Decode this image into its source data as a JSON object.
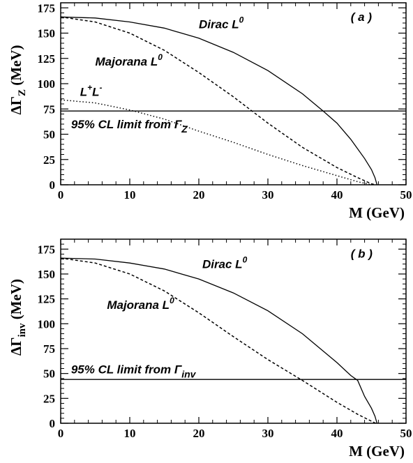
{
  "chart_data": [
    {
      "type": "line",
      "panel_label": "( a )",
      "ylabel": "ΔΓ",
      "ylabel_sub": "Z",
      "ylabel_unit": "(MeV)",
      "xlabel": "M (GeV)",
      "xlim": [
        0,
        50
      ],
      "ylim": [
        0,
        180
      ],
      "xticks": [
        0,
        10,
        20,
        30,
        40,
        50
      ],
      "yticks": [
        0,
        25,
        50,
        75,
        100,
        125,
        150,
        175
      ],
      "series": [
        {
          "name": "Dirac L0",
          "style": "solid",
          "points": [
            [
              0,
              166
            ],
            [
              5,
              165
            ],
            [
              10,
              161
            ],
            [
              15,
              155
            ],
            [
              20,
              145
            ],
            [
              25,
              131
            ],
            [
              30,
              113
            ],
            [
              35,
              90
            ],
            [
              38,
              73
            ],
            [
              40,
              61
            ],
            [
              42,
              45
            ],
            [
              44,
              26
            ],
            [
              45,
              15
            ],
            [
              45.5,
              7
            ],
            [
              45.8,
              0
            ]
          ]
        },
        {
          "name": "Majorana L0",
          "style": "dashed",
          "points": [
            [
              0,
              166
            ],
            [
              5,
              161
            ],
            [
              10,
              150
            ],
            [
              15,
              133
            ],
            [
              20,
              111
            ],
            [
              25,
              87
            ],
            [
              30,
              61
            ],
            [
              35,
              37
            ],
            [
              40,
              17
            ],
            [
              43,
              7
            ],
            [
              45,
              1
            ],
            [
              45.5,
              0
            ]
          ]
        },
        {
          "name": "L+L-",
          "style": "dotted",
          "points": [
            [
              0,
              84
            ],
            [
              5,
              81
            ],
            [
              10,
              74
            ],
            [
              15,
              65
            ],
            [
              20,
              53
            ],
            [
              25,
              42
            ],
            [
              30,
              30
            ],
            [
              35,
              19
            ],
            [
              40,
              9
            ],
            [
              43,
              3
            ],
            [
              45,
              0
            ]
          ]
        },
        {
          "name": "95% CL limit from Γ_Z",
          "style": "solid",
          "points": [
            [
              0,
              73
            ],
            [
              50,
              73
            ]
          ]
        }
      ],
      "annotations": [
        {
          "text": "Dirac L",
          "sup": "0",
          "x": 20,
          "y": 155
        },
        {
          "text": "Majorana L",
          "sup": "0",
          "x": 5,
          "y": 118
        },
        {
          "text": "L",
          "sup": "+",
          "text2": "L",
          "sup2": "-",
          "x": 2.8,
          "y": 88
        },
        {
          "text": "95% CL limit from Γ",
          "sub": "Z",
          "x": 1.5,
          "y": 56
        }
      ]
    },
    {
      "type": "line",
      "panel_label": "( b )",
      "ylabel": "ΔΓ",
      "ylabel_sub": "inv",
      "ylabel_unit": "(MeV)",
      "xlabel": "M (GeV)",
      "xlim": [
        0,
        50
      ],
      "ylim": [
        0,
        185
      ],
      "xticks": [
        0,
        10,
        20,
        30,
        40,
        50
      ],
      "yticks": [
        0,
        25,
        50,
        75,
        100,
        125,
        150,
        175
      ],
      "series": [
        {
          "name": "Dirac L0",
          "style": "solid",
          "points": [
            [
              0,
              166
            ],
            [
              5,
              165
            ],
            [
              10,
              161
            ],
            [
              15,
              155
            ],
            [
              20,
              145
            ],
            [
              25,
              131
            ],
            [
              30,
              113
            ],
            [
              35,
              90
            ],
            [
              40,
              61
            ],
            [
              42,
              48
            ],
            [
              43,
              43
            ],
            [
              44,
              27
            ],
            [
              45,
              15
            ],
            [
              45.5,
              7
            ],
            [
              45.8,
              0
            ]
          ]
        },
        {
          "name": "Majorana L0",
          "style": "dashed",
          "points": [
            [
              0,
              166
            ],
            [
              5,
              161
            ],
            [
              10,
              150
            ],
            [
              15,
              133
            ],
            [
              20,
              111
            ],
            [
              25,
              87
            ],
            [
              30,
              64
            ],
            [
              35,
              43
            ],
            [
              40,
              21
            ],
            [
              43,
              9
            ],
            [
              45,
              2
            ],
            [
              45.6,
              0
            ]
          ]
        },
        {
          "name": "95% CL limit from Γ_inv",
          "style": "solid",
          "points": [
            [
              0,
              44
            ],
            [
              50,
              44
            ]
          ]
        }
      ],
      "annotations": [
        {
          "text": "Dirac L",
          "sup": "0",
          "x": 20.5,
          "y": 156
        },
        {
          "text": "Majorana L",
          "sup": "0",
          "x": 6.7,
          "y": 115
        },
        {
          "text": "95% CL limit from Γ",
          "sub": "inv",
          "x": 1.5,
          "y": 50
        }
      ]
    }
  ]
}
